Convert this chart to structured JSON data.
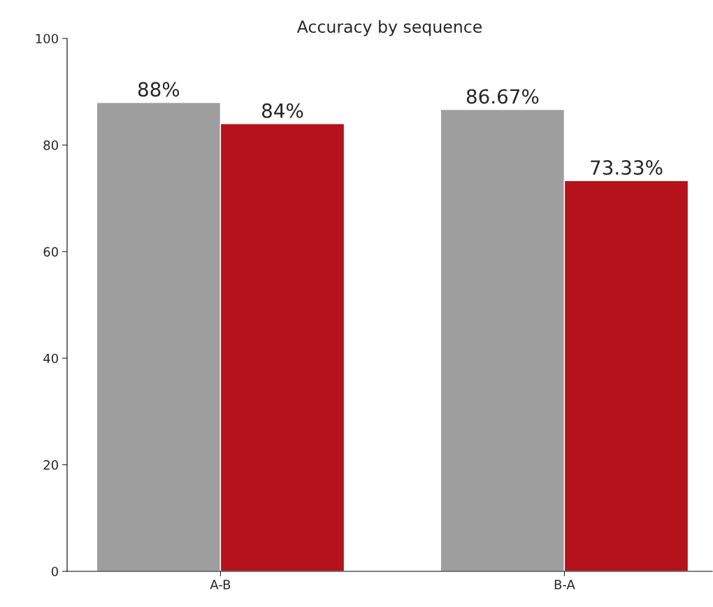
{
  "chart_data": {
    "type": "bar",
    "title": "Accuracy by sequence",
    "categories": [
      "A-B",
      "B-A"
    ],
    "series": [
      {
        "color": "#9e9e9e",
        "values": [
          88,
          86.67
        ],
        "value_labels": [
          "88%",
          "86.67%"
        ]
      },
      {
        "color": "#b5121b",
        "values": [
          84,
          73.33
        ],
        "value_labels": [
          "84%",
          "73.33%"
        ]
      }
    ],
    "ylim": [
      0,
      100
    ],
    "yticks": [
      0,
      20,
      40,
      60,
      80,
      100
    ],
    "grid": false,
    "legend": false
  }
}
